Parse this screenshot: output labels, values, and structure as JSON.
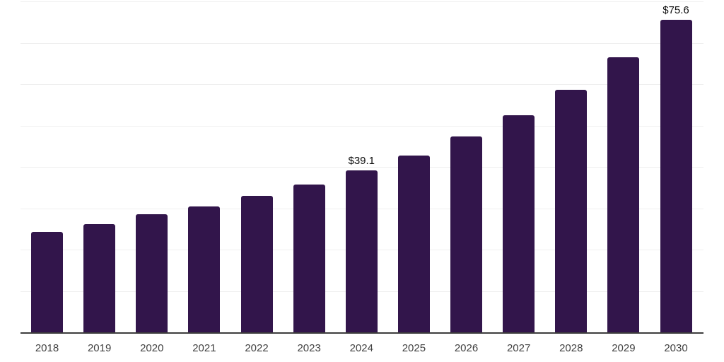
{
  "chart_data": {
    "type": "bar",
    "title": "",
    "xlabel": "",
    "ylabel": "",
    "categories": [
      "2018",
      "2019",
      "2020",
      "2021",
      "2022",
      "2023",
      "2024",
      "2025",
      "2026",
      "2027",
      "2028",
      "2029",
      "2030"
    ],
    "values": [
      24.3,
      26.1,
      28.5,
      30.4,
      33.0,
      35.8,
      39.1,
      42.7,
      47.3,
      52.5,
      58.6,
      66.5,
      75.6
    ],
    "data_labels": {
      "2024": "$39.1",
      "2030": "$75.6"
    },
    "ylim": [
      0,
      80
    ],
    "gridline_step": 10,
    "grid": "horizontal",
    "legend_position": "none",
    "bar_color": "#32154B",
    "gridline_color": "#efefef",
    "axis_line_color": "#3d3d3d",
    "tick_label_color": "#404040",
    "value_label_color": "#0d0d0d"
  }
}
